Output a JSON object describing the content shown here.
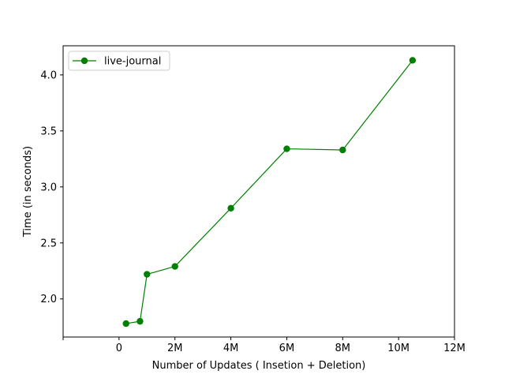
{
  "chart_data": {
    "type": "line",
    "title": "",
    "xlabel": "Number of Updates ( Insetion + Deletion)",
    "ylabel": "Time (in seconds)",
    "xlim": [
      -2000000,
      12000000
    ],
    "ylim": [
      1.66,
      4.26
    ],
    "x_ticks": [
      {
        "value": -2000000,
        "label": ""
      },
      {
        "value": 0,
        "label": "0"
      },
      {
        "value": 2000000,
        "label": "2M"
      },
      {
        "value": 4000000,
        "label": "4M"
      },
      {
        "value": 6000000,
        "label": "6M"
      },
      {
        "value": 8000000,
        "label": "8M"
      },
      {
        "value": 10000000,
        "label": "10M"
      },
      {
        "value": 12000000,
        "label": "12M"
      }
    ],
    "y_ticks": [
      {
        "value": 2.0,
        "label": "2.0"
      },
      {
        "value": 2.5,
        "label": "2.5"
      },
      {
        "value": 3.0,
        "label": "3.0"
      },
      {
        "value": 3.5,
        "label": "3.5"
      },
      {
        "value": 4.0,
        "label": "4.0"
      }
    ],
    "grid": false,
    "legend_position": "top-left",
    "series": [
      {
        "name": "live-journal",
        "color": "#008000",
        "marker": "circle",
        "x": [
          250000,
          750000,
          1000000,
          2000000,
          4000000,
          6000000,
          8000000,
          10500000
        ],
        "y": [
          1.78,
          1.8,
          2.22,
          2.29,
          2.81,
          3.34,
          3.33,
          4.13
        ]
      }
    ]
  }
}
